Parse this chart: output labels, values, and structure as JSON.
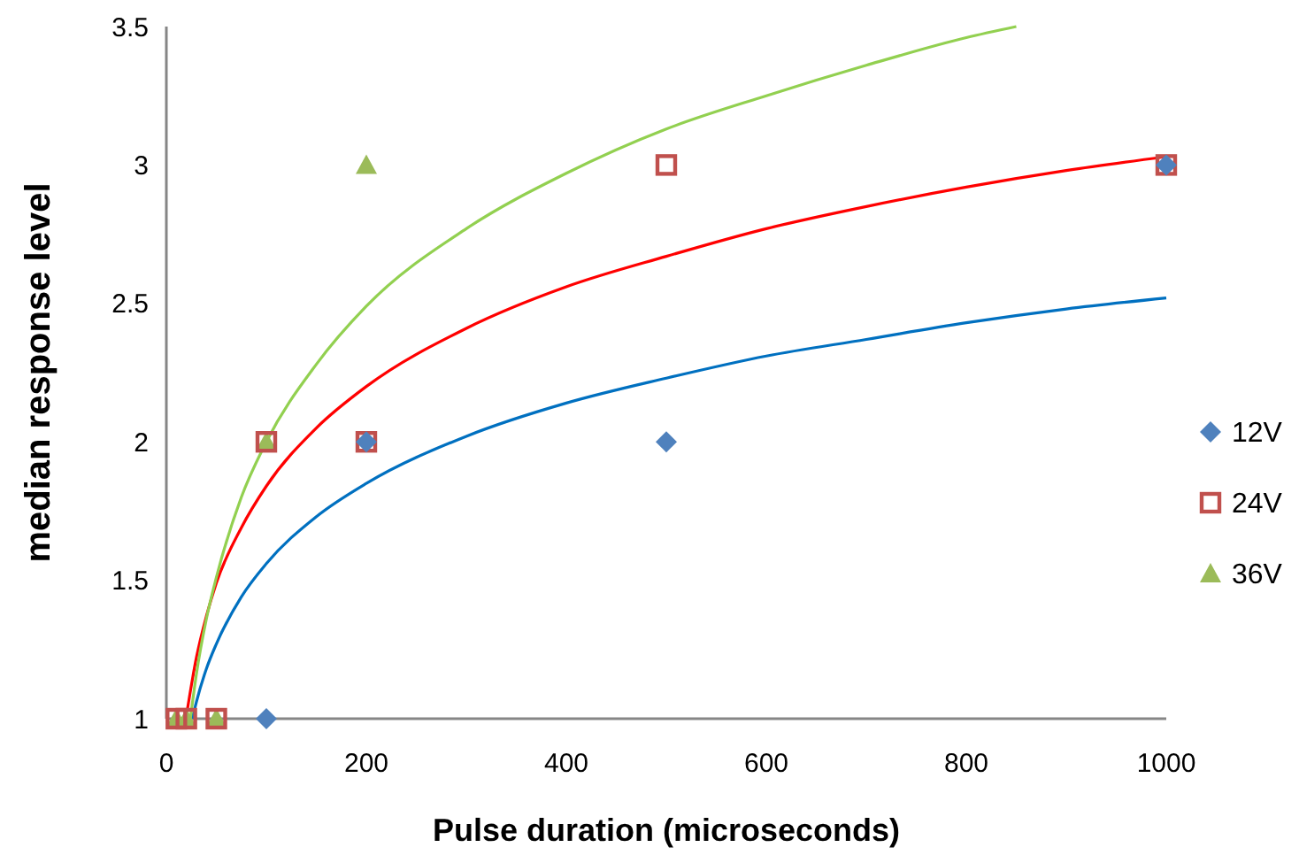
{
  "chart_data": {
    "type": "scatter",
    "xlabel": "Pulse duration (microseconds)",
    "ylabel": "median response level",
    "xlim": [
      0,
      1000
    ],
    "xticks": [
      0,
      200,
      400,
      600,
      800,
      1000
    ],
    "ylim": [
      1,
      3.5
    ],
    "yticks": [
      1,
      1.5,
      2,
      2.5,
      3,
      3.5
    ],
    "grid": false,
    "legend": "right",
    "series": [
      {
        "name": "12V",
        "color": "#4f81bd",
        "marker": "diamond",
        "x": [
          100,
          200,
          500,
          1000
        ],
        "values": [
          1,
          2,
          2,
          3
        ]
      },
      {
        "name": "24V",
        "color": "#c0504d",
        "marker": "square",
        "x": [
          10,
          20,
          50,
          100,
          200,
          500,
          1000
        ],
        "values": [
          1,
          1,
          1,
          2,
          2,
          3,
          3
        ]
      },
      {
        "name": "36V",
        "color": "#9bbb59",
        "marker": "triangle",
        "x": [
          10,
          20,
          50,
          100,
          200
        ],
        "values": [
          1,
          1,
          1,
          2,
          3
        ]
      },
      {
        "type": "line",
        "color": "#0070c0",
        "marker": "none",
        "x": [
          26,
          30,
          40,
          50,
          75,
          100,
          150,
          200,
          300,
          400,
          500,
          600,
          700,
          800,
          900,
          1000
        ],
        "values": [
          1.0,
          1.06,
          1.18,
          1.27,
          1.44,
          1.56,
          1.73,
          1.85,
          2.02,
          2.14,
          2.23,
          2.31,
          2.37,
          2.43,
          2.48,
          2.52
        ]
      },
      {
        "type": "line",
        "color": "#ff0000",
        "marker": "none",
        "x": [
          20,
          30,
          40,
          50,
          75,
          100,
          150,
          200,
          300,
          400,
          500,
          600,
          700,
          800,
          900,
          1000
        ],
        "values": [
          1.01,
          1.22,
          1.37,
          1.49,
          1.69,
          1.84,
          2.05,
          2.2,
          2.41,
          2.56,
          2.67,
          2.77,
          2.85,
          2.92,
          2.98,
          3.03
        ]
      },
      {
        "type": "line",
        "color": "#92d050",
        "marker": "none",
        "x": [
          24,
          30,
          40,
          50,
          75,
          100,
          150,
          200,
          300,
          400,
          500,
          600,
          700,
          800,
          850
        ],
        "values": [
          1.0,
          1.16,
          1.36,
          1.51,
          1.8,
          2.0,
          2.28,
          2.49,
          2.77,
          2.97,
          3.13,
          3.25,
          3.36,
          3.46,
          3.5
        ]
      }
    ]
  }
}
